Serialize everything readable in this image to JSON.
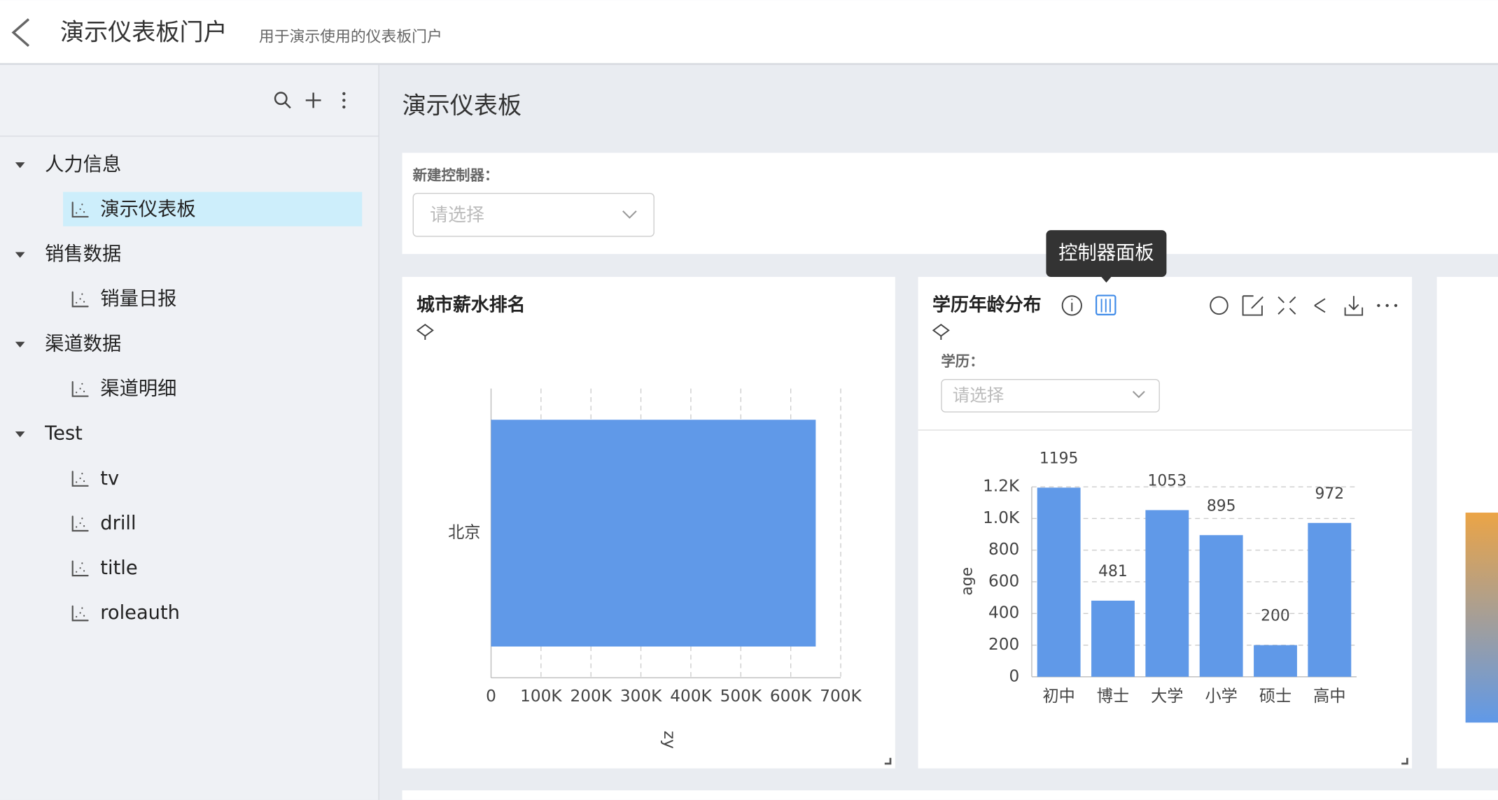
{
  "header": {
    "title": "演示仪表板门户",
    "subtitle": "用于演示使用的仪表板门户"
  },
  "sidebar": {
    "tree": [
      {
        "label": "人力信息",
        "children": [
          "演示仪表板"
        ]
      },
      {
        "label": "销售数据",
        "children": [
          "销量日报"
        ]
      },
      {
        "label": "渠道数据",
        "children": [
          "渠道明细"
        ]
      },
      {
        "label": "Test",
        "children": [
          "tv",
          "drill",
          "title",
          "roleauth"
        ]
      }
    ]
  },
  "dashboard": {
    "title": "演示仪表板",
    "controller_label": "新建控制器：",
    "controller_placeholder": "请选择",
    "tooltip": "控制器面板"
  },
  "widgets": [
    {
      "title": "城市薪水排名",
      "chart_data": {
        "type": "barh",
        "categories": [
          "北京"
        ],
        "values": [
          650000
        ],
        "color": "#6099e8",
        "xlabel": "zy",
        "xlim": [
          0,
          700000
        ],
        "xticks": [
          0,
          {
            "value": 100000,
            "label": "100K"
          },
          {
            "value": 200000,
            "label": "200K"
          },
          {
            "value": 300000,
            "label": "300K"
          },
          {
            "value": 400000,
            "label": "400K"
          },
          {
            "value": 500000,
            "label": "500K"
          },
          {
            "value": 600000,
            "label": "600K"
          },
          {
            "value": 700000,
            "label": "700K"
          }
        ],
        "grid": true
      }
    },
    {
      "title": "学历年龄分布",
      "control_label": "学历：",
      "control_placeholder": "请选择",
      "chart_data": {
        "type": "bar",
        "categories": [
          "初中",
          "博士",
          "大学",
          "小学",
          "硕士",
          "高中"
        ],
        "values": [
          1195,
          481,
          1053,
          895,
          200,
          972
        ],
        "color": "#6099e8",
        "ylabel": "age",
        "ylim": [
          0,
          1200
        ],
        "yticks": [
          0,
          200,
          400,
          600,
          800,
          {
            "value": 1000,
            "label": "1.0K"
          },
          {
            "value": 1200,
            "label": "1.2K"
          }
        ],
        "grid": true
      }
    }
  ]
}
